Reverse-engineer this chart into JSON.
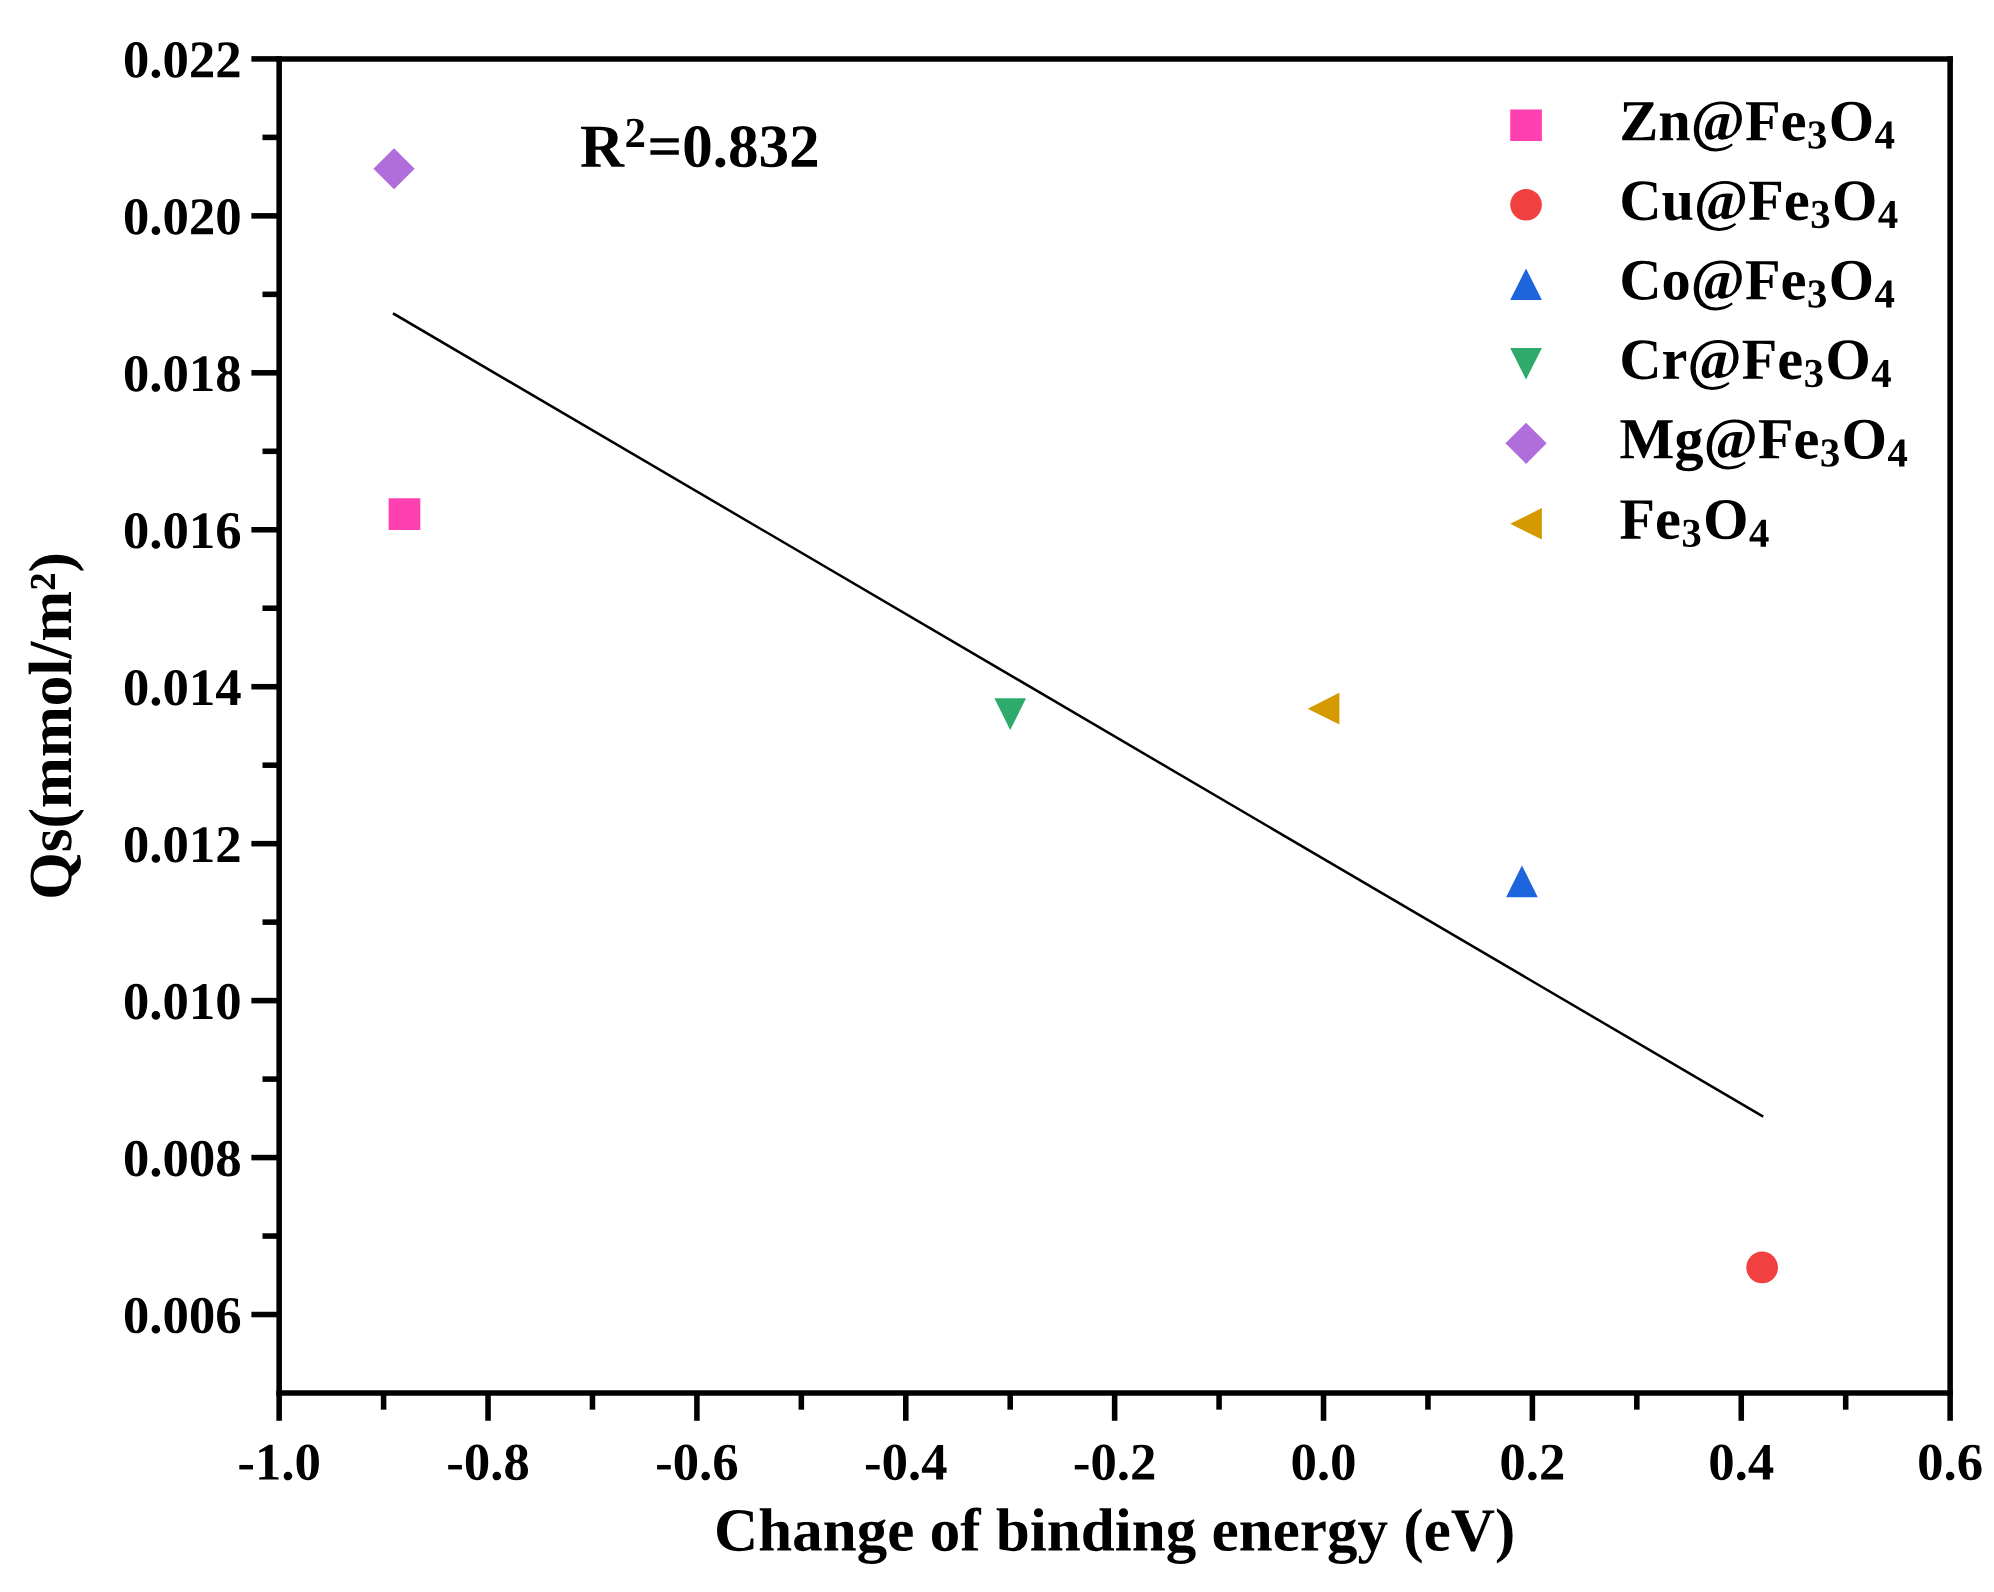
{
  "chart_data": {
    "type": "scatter",
    "xlabel": "Change of binding energy (eV)",
    "ylabel": "Qs(mmol/m²)",
    "annotations": [
      "R$^{2}$=0.832"
    ],
    "series": [
      {
        "name": "Zn@Fe$_{3}$O$_{4}$",
        "color": "#ff40b0",
        "marker": "square",
        "x": [
          -0.88
        ],
        "values": [
          0.0162
        ]
      },
      {
        "name": "Cu@Fe$_{3}$O$_{4}$",
        "color": "#f04040",
        "marker": "circle",
        "x": [
          0.42
        ],
        "values": [
          0.0066
        ]
      },
      {
        "name": "Co@Fe$_{3}$O$_{4}$",
        "color": "#1e64dc",
        "marker": "triangle",
        "x": [
          0.19
        ],
        "values": [
          0.01152
        ]
      },
      {
        "name": "Cr@Fe$_{3}$O$_{4}$",
        "color": "#2eaa6a",
        "marker": "triangle_down",
        "x": [
          -0.3
        ],
        "values": [
          0.01365
        ]
      },
      {
        "name": "Mg@Fe$_{3}$O$_{4}$",
        "color": "#b06ddc",
        "marker": "diamond",
        "x": [
          -0.89
        ],
        "values": [
          0.0206
        ]
      },
      {
        "name": "Fe$_{3}$O$_{4}$",
        "color": "#d49a00",
        "marker": "triangle_left",
        "x": [
          0.0
        ],
        "values": [
          0.01372
        ]
      },
      {
        "type": "line",
        "color": "#000000",
        "marker": "none",
        "x": [
          -0.89,
          0.42
        ],
        "values": [
          0.01875,
          0.00853
        ]
      }
    ],
    "xlim": [
      -1.0,
      0.6
    ],
    "ylim": [
      0.005,
      0.022
    ],
    "xticks": [
      {
        "value": -1.0,
        "label": "-1.0"
      },
      {
        "value": -0.9,
        "label": null
      },
      {
        "value": -0.8,
        "label": "-0.8"
      },
      {
        "value": -0.7,
        "label": null
      },
      {
        "value": -0.6,
        "label": "-0.6"
      },
      {
        "value": -0.5,
        "label": null
      },
      {
        "value": -0.4,
        "label": "-0.4"
      },
      {
        "value": -0.3,
        "label": null
      },
      {
        "value": -0.2,
        "label": "-0.2"
      },
      {
        "value": -0.1,
        "label": null
      },
      {
        "value": 0.0,
        "label": "0.0"
      },
      {
        "value": 0.1,
        "label": null
      },
      {
        "value": 0.2,
        "label": "0.2"
      },
      {
        "value": 0.3,
        "label": null
      },
      {
        "value": 0.4,
        "label": "0.4"
      },
      {
        "value": 0.5,
        "label": null
      },
      {
        "value": 0.6,
        "label": "0.6"
      }
    ],
    "yticks": [
      {
        "value": 0.006,
        "label": "0.006"
      },
      {
        "value": 0.007,
        "label": null
      },
      {
        "value": 0.008,
        "label": "0.008"
      },
      {
        "value": 0.009,
        "label": null
      },
      {
        "value": 0.01,
        "label": "0.010"
      },
      {
        "value": 0.011,
        "label": null
      },
      {
        "value": 0.012,
        "label": "0.012"
      },
      {
        "value": 0.013,
        "label": null
      },
      {
        "value": 0.014,
        "label": "0.014"
      },
      {
        "value": 0.015,
        "label": null
      },
      {
        "value": 0.016,
        "label": "0.016"
      },
      {
        "value": 0.017,
        "label": null
      },
      {
        "value": 0.018,
        "label": "0.018"
      },
      {
        "value": 0.019,
        "label": null
      },
      {
        "value": 0.02,
        "label": "0.020"
      },
      {
        "value": 0.021,
        "label": null
      },
      {
        "value": 0.022,
        "label": "0.022"
      }
    ],
    "grid": false,
    "legend": "top right"
  }
}
